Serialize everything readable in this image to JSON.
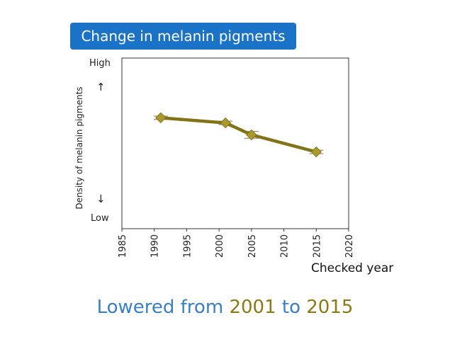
{
  "title": "Change in melanin pigments",
  "y_axis": {
    "label": "Density of melanin pigments",
    "high_label": "High",
    "low_label": "Low",
    "up_arrow": "↑",
    "down_arrow": "↓"
  },
  "x_axis_title": "Checked year",
  "conclusion": {
    "prefix": "Lowered from ",
    "year_from": "2001",
    "middle": " to ",
    "year_to": "2015"
  },
  "colors": {
    "title_background": "#1a73c7",
    "series_line": "#827317",
    "series_marker": "#a99a2b",
    "conclusion_text": "#3a7fc4",
    "conclusion_year": "#8b7a17"
  },
  "chart_data": {
    "type": "line",
    "title": "Change in melanin pigments",
    "xlabel": "Checked year",
    "ylabel": "Density of melanin pigments",
    "xlim": [
      1985,
      2020
    ],
    "x_ticks": [
      1985,
      1990,
      1995,
      2000,
      2005,
      2010,
      2015,
      2020
    ],
    "ylim": [
      0,
      10
    ],
    "y_tick_labels": [
      "Low",
      "High"
    ],
    "grid": false,
    "series": [
      {
        "x": [
          1991,
          2001,
          2005,
          2015
        ],
        "y": [
          6.5,
          6.2,
          5.5,
          4.5
        ],
        "error": [
          0.1,
          0.1,
          0.2,
          0.1
        ],
        "marker": "diamond"
      }
    ]
  }
}
